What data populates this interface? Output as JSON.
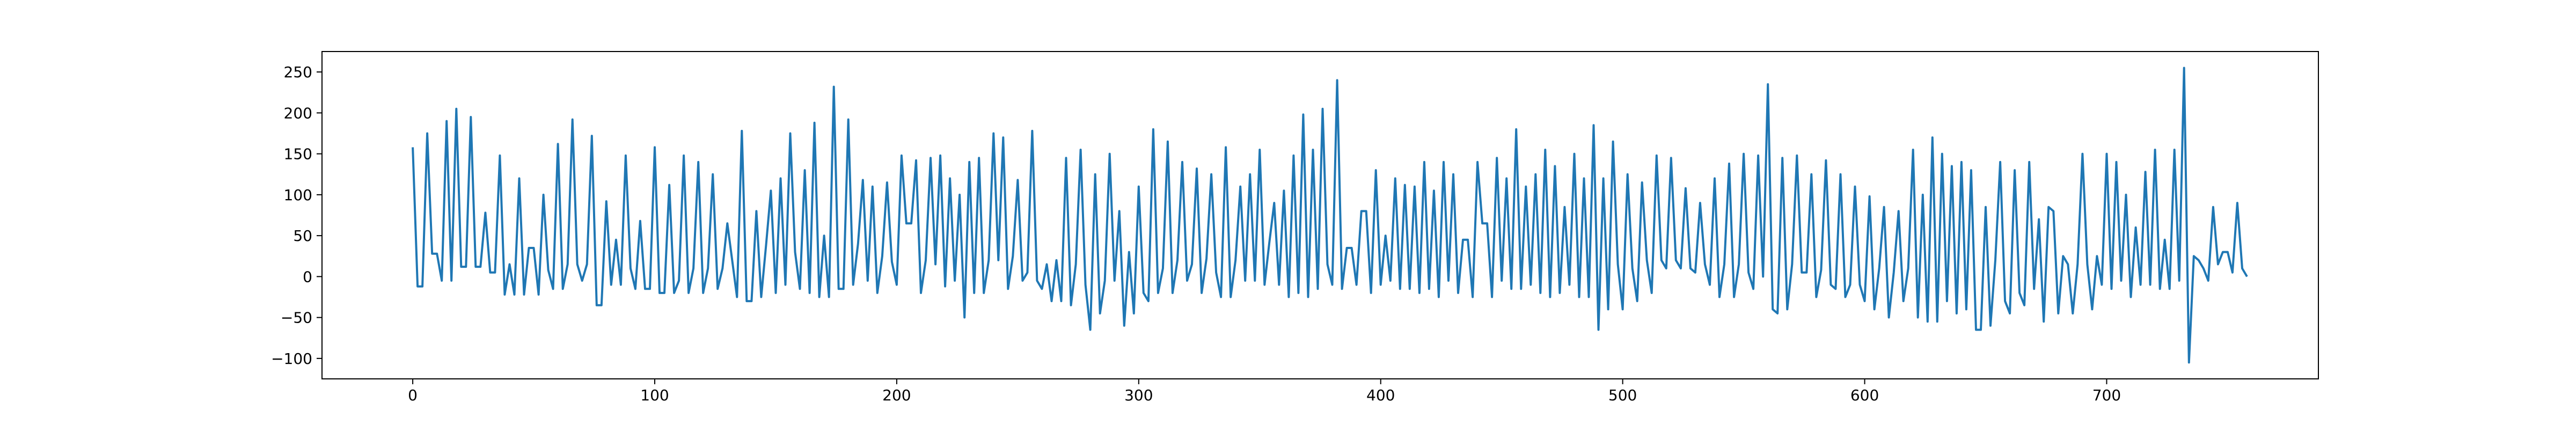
{
  "chart_data": {
    "type": "line",
    "title": "",
    "xlabel": "",
    "ylabel": "",
    "xlim": [
      -37.5,
      787.5
    ],
    "ylim": [
      -125,
      275
    ],
    "x_ticks": [
      0,
      100,
      200,
      300,
      400,
      500,
      600,
      700
    ],
    "y_ticks": [
      -100,
      -50,
      0,
      50,
      100,
      150,
      200,
      250
    ],
    "grid": false,
    "legend": "none",
    "line_color": "#1f77b4",
    "x_start": 0,
    "x_step": 2,
    "series": [
      {
        "values": [
          158,
          -12,
          -12,
          175,
          28,
          28,
          -5,
          190,
          -5,
          205,
          12,
          12,
          195,
          12,
          12,
          78,
          5,
          5,
          148,
          -22,
          15,
          -22,
          120,
          -22,
          35,
          35,
          -22,
          100,
          8,
          -15,
          162,
          -15,
          15,
          192,
          15,
          -5,
          15,
          172,
          -35,
          -35,
          92,
          -10,
          45,
          -10,
          148,
          10,
          -15,
          68,
          -15,
          -15,
          158,
          -20,
          -20,
          112,
          -20,
          -5,
          148,
          -20,
          10,
          140,
          -20,
          10,
          125,
          -15,
          10,
          65,
          20,
          -25,
          178,
          -30,
          -30,
          80,
          -25,
          38,
          105,
          -20,
          120,
          -10,
          175,
          30,
          -15,
          130,
          -20,
          188,
          -25,
          50,
          -25,
          232,
          -15,
          -15,
          192,
          -10,
          40,
          118,
          -5,
          110,
          -20,
          25,
          115,
          18,
          -10,
          148,
          65,
          65,
          142,
          -20,
          20,
          145,
          15,
          148,
          -12,
          120,
          -5,
          100,
          -50,
          140,
          -20,
          145,
          -20,
          20,
          175,
          20,
          170,
          -15,
          25,
          118,
          -5,
          5,
          178,
          -5,
          -15,
          15,
          -30,
          20,
          -30,
          145,
          -35,
          15,
          155,
          -10,
          -65,
          125,
          -45,
          -5,
          150,
          -5,
          80,
          -60,
          30,
          -45,
          110,
          -20,
          -30,
          180,
          -20,
          10,
          165,
          -20,
          20,
          140,
          -5,
          15,
          132,
          -20,
          22,
          125,
          5,
          -25,
          158,
          -25,
          20,
          110,
          -5,
          125,
          -5,
          155,
          -10,
          42,
          90,
          -10,
          105,
          -25,
          148,
          -20,
          198,
          -25,
          155,
          -15,
          205,
          15,
          -10,
          240,
          -15,
          35,
          35,
          -10,
          80,
          80,
          -20,
          130,
          -10,
          50,
          -5,
          120,
          -15,
          112,
          -15,
          110,
          -20,
          140,
          -15,
          105,
          -25,
          140,
          -5,
          125,
          -20,
          45,
          45,
          -25,
          140,
          65,
          65,
          -25,
          145,
          -5,
          120,
          -15,
          180,
          -15,
          110,
          -10,
          125,
          -20,
          155,
          -25,
          135,
          -20,
          85,
          -10,
          150,
          -25,
          120,
          -25,
          185,
          -65,
          120,
          -40,
          165,
          15,
          -40,
          125,
          10,
          -30,
          115,
          20,
          -20,
          148,
          20,
          10,
          145,
          20,
          10,
          108,
          10,
          5,
          90,
          15,
          -10,
          120,
          -25,
          15,
          138,
          -25,
          15,
          150,
          5,
          -15,
          148,
          0,
          235,
          -40,
          -45,
          145,
          -40,
          15,
          148,
          5,
          5,
          125,
          -25,
          8,
          142,
          -10,
          -15,
          125,
          -25,
          -10,
          110,
          -10,
          -30,
          98,
          -40,
          10,
          85,
          -50,
          5,
          80,
          -30,
          10,
          155,
          -50,
          100,
          -55,
          170,
          -55,
          150,
          -30,
          135,
          -45,
          140,
          -40,
          130,
          -65,
          -65,
          85,
          -60,
          20,
          140,
          -30,
          -45,
          130,
          -20,
          -35,
          140,
          -15,
          70,
          -55,
          85,
          80,
          -45,
          25,
          15,
          -45,
          15,
          150,
          15,
          -40,
          25,
          -10,
          150,
          -15,
          140,
          -5,
          100,
          -25,
          60,
          -10,
          128,
          -10,
          155,
          -15,
          45,
          -15,
          155,
          -5,
          255,
          -105,
          25,
          20,
          10,
          -5,
          85,
          15,
          30,
          30,
          5,
          90,
          10,
          0
        ]
      }
    ]
  }
}
